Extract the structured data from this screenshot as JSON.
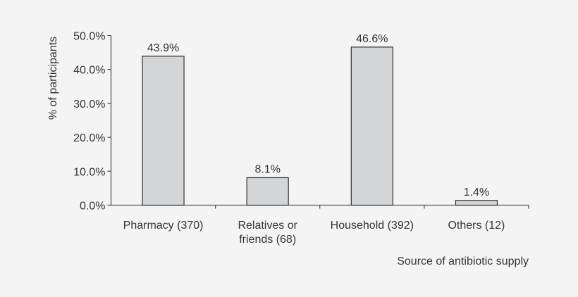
{
  "chart_data": {
    "type": "bar",
    "categories": [
      [
        "Pharmacy (370)"
      ],
      [
        "Relatives or",
        "friends (68)"
      ],
      [
        "Household (392)"
      ],
      [
        "Others (12)"
      ]
    ],
    "values": [
      43.9,
      8.1,
      46.6,
      1.4
    ],
    "data_labels": [
      "43.9%",
      "8.1%",
      "46.6%",
      "1.4%"
    ],
    "title": "",
    "xlabel": "Source of antibiotic supply",
    "ylabel": "% of participants",
    "ylim": [
      0,
      50
    ],
    "yticks": [
      "0.0%",
      "10.0%",
      "20.0%",
      "30.0%",
      "40.0%",
      "50.0%"
    ],
    "grid": false,
    "colors": {
      "bar": "#d4d5d6",
      "bar_edge": "#333333",
      "axis": "#555555",
      "background": "#f4f4f4"
    }
  }
}
